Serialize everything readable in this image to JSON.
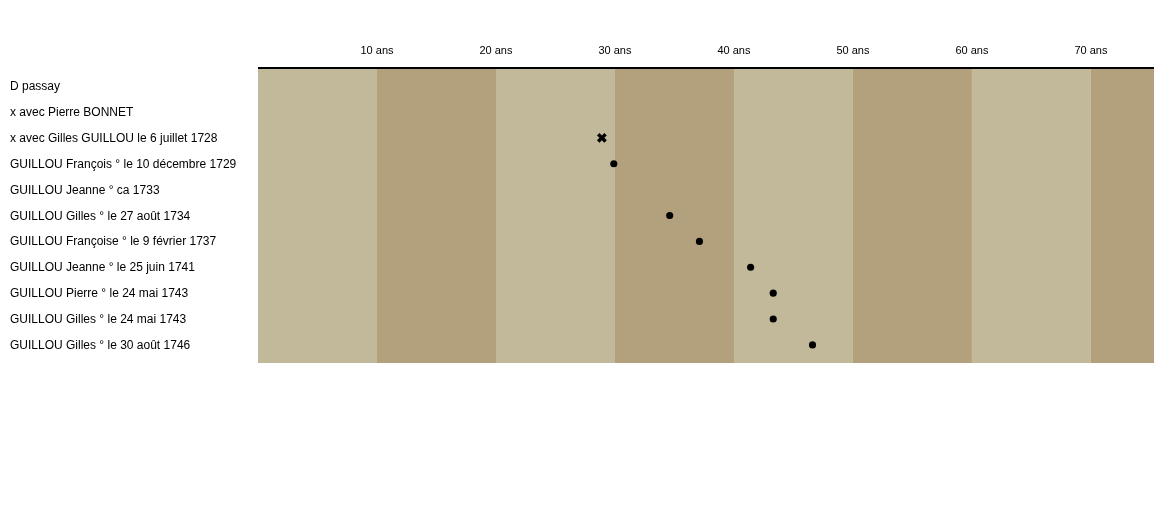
{
  "chart_data": {
    "type": "scatter",
    "orientation": "horizontal",
    "categories": [
      "D passay",
      "x avec Pierre BONNET",
      "x avec Gilles GUILLOU le 6 juillet 1728",
      "GUILLOU François ° le 10 décembre 1729",
      "GUILLOU Jeanne ° ca  1733",
      "GUILLOU Gilles ° le 27 août 1734",
      "GUILLOU Françoise ° le 9 février 1737",
      "GUILLOU Jeanne ° le 25 juin 1741",
      "GUILLOU Pierre ° le 24 mai 1743",
      "GUILLOU Gilles ° le 24 mai 1743",
      "GUILLOU Gilles ° le 30 août 1746"
    ],
    "series": [
      {
        "color": "#000000",
        "marker": "cross",
        "values": [
          null,
          null,
          28.9,
          null,
          null,
          null,
          null,
          null,
          null,
          null,
          null
        ]
      },
      {
        "color": "#000000",
        "marker": "circle",
        "values": [
          null,
          null,
          null,
          29.9,
          null,
          34.6,
          37.1,
          41.4,
          43.3,
          43.3,
          46.6
        ]
      }
    ],
    "xlim": [
      0,
      75.3
    ],
    "xticks": [
      {
        "value": 10,
        "label": "10 ans"
      },
      {
        "value": 20,
        "label": "20 ans"
      },
      {
        "value": 30,
        "label": "30 ans"
      },
      {
        "value": 40,
        "label": "40 ans"
      },
      {
        "value": 50,
        "label": "50 ans"
      },
      {
        "value": 60,
        "label": "60 ans"
      },
      {
        "value": 70,
        "label": "70 ans"
      }
    ],
    "bands": [
      {
        "axis": "x",
        "from": 0,
        "to": 10,
        "color": "#c2b99a"
      },
      {
        "axis": "x",
        "from": 10,
        "to": 20,
        "color": "#b3a07d"
      },
      {
        "axis": "x",
        "from": 20,
        "to": 30,
        "color": "#c2b99a"
      },
      {
        "axis": "x",
        "from": 30,
        "to": 40,
        "color": "#b3a07d"
      },
      {
        "axis": "x",
        "from": 40,
        "to": 50,
        "color": "#c2b99a"
      },
      {
        "axis": "x",
        "from": 50,
        "to": 60,
        "color": "#b3a07d"
      },
      {
        "axis": "x",
        "from": 60,
        "to": 70,
        "color": "#c2b99a"
      },
      {
        "axis": "x",
        "from": 70,
        "to": 75.3,
        "color": "#b3a07d"
      }
    ],
    "grid": false,
    "legend": false
  }
}
